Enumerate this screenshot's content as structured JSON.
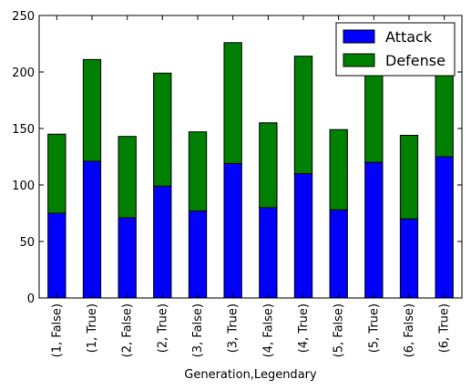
{
  "chart_data": {
    "type": "bar",
    "stacked": true,
    "categories": [
      "(1, False)",
      "(1, True)",
      "(2, False)",
      "(2, True)",
      "(3, False)",
      "(3, True)",
      "(4, False)",
      "(4, True)",
      "(5, False)",
      "(5, True)",
      "(6, False)",
      "(6, True)"
    ],
    "series": [
      {
        "name": "Attack",
        "color": "#0000ff",
        "values": [
          75,
          121,
          71,
          99,
          77,
          119,
          80,
          110,
          78,
          120,
          70,
          125
        ]
      },
      {
        "name": "Defense",
        "color": "#008000",
        "values": [
          70,
          90,
          72,
          100,
          70,
          107,
          75,
          104,
          71,
          112,
          74,
          110
        ]
      }
    ],
    "title": "",
    "xlabel": "Generation,Legendary",
    "ylabel": "",
    "ylim": [
      0,
      250
    ],
    "yticks": [
      0,
      50,
      100,
      150,
      200,
      250
    ],
    "grid": false,
    "legend_position": "top-right"
  }
}
